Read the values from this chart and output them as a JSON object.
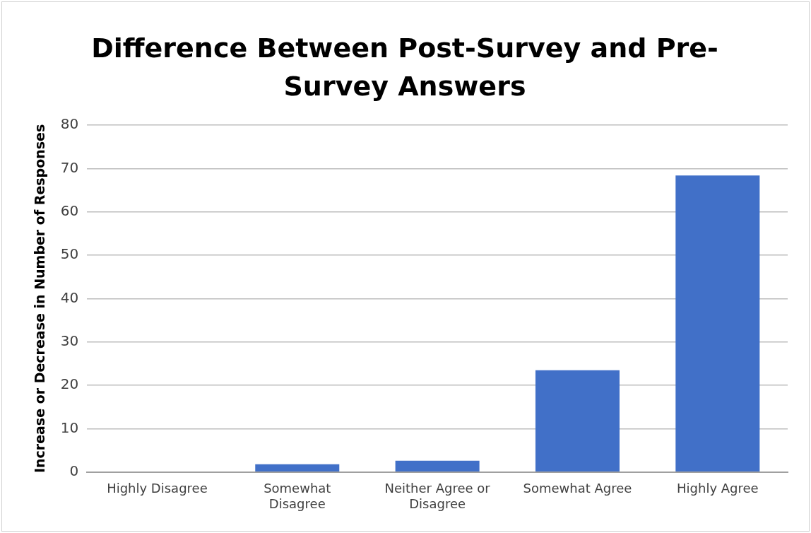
{
  "chart_data": {
    "type": "bar",
    "title": "Difference Between Post-Survey and Pre-Survey Answers",
    "ylabel": "Increase or Decrease in Number of Responses",
    "categories": [
      "Highly Disagree",
      "Somewhat Disagree",
      "Neither Agree or Disagree",
      "Somewhat Agree",
      "Highly Agree"
    ],
    "values": [
      0,
      1.8,
      2.6,
      23.5,
      68.4
    ],
    "color": "#4170c8",
    "ylim": [
      0,
      80
    ],
    "yticks": [
      0,
      10,
      20,
      30,
      40,
      50,
      60,
      70,
      80
    ],
    "grid": "y"
  }
}
